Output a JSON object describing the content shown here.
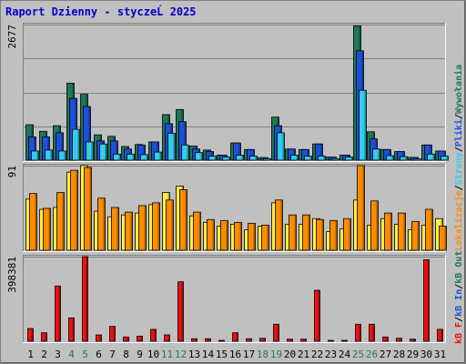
{
  "title": "Raport Dzienny -  styczeĹ  2025",
  "colors": {
    "background": "#c0c0c0",
    "title_text": "#0000cc",
    "frame_dark": "#808080",
    "frame_light": "#ffffff",
    "gridline": "#808080",
    "visits": "#1e7856",
    "pages": "#1e4fdc",
    "files": "#33ccee",
    "hits": "#1e7856",
    "kb_in": "#ffee44",
    "kb_out": "#ff8c00",
    "kb_f": "#ee1111",
    "weekend_day": "#1e7856",
    "weekday": "#000000"
  },
  "legend_right": [
    {
      "text": "kB F",
      "color": "#ee1111"
    },
    {
      "text": "/",
      "color": "#000000"
    },
    {
      "text": "kB In",
      "color": "#1e4fdc"
    },
    {
      "text": "/",
      "color": "#000000"
    },
    {
      "text": "kB Out",
      "color": "#1e7856"
    },
    {
      "text": "Lokalizacje",
      "color": "#ff8c00"
    },
    {
      "text": "/",
      "color": "#000000"
    },
    {
      "text": "Strony",
      "color": "#33ccee"
    },
    {
      "text": "/",
      "color": "#000000"
    },
    {
      "text": "Pliki",
      "color": "#1e4fdc"
    },
    {
      "text": "/",
      "color": "#000000"
    },
    {
      "text": "Wywołania",
      "color": "#1e7856"
    }
  ],
  "chart_data": {
    "type": "bar",
    "categories": [
      "1",
      "2",
      "3",
      "4",
      "5",
      "6",
      "7",
      "8",
      "9",
      "10",
      "11",
      "12",
      "13",
      "14",
      "15",
      "16",
      "17",
      "18",
      "19",
      "20",
      "21",
      "22",
      "23",
      "24",
      "25",
      "26",
      "27",
      "28",
      "29",
      "30",
      "31"
    ],
    "weekend_days": [
      "4",
      "5",
      "11",
      "12",
      "18",
      "19",
      "25",
      "26"
    ],
    "panels": [
      {
        "id": "requests",
        "ytick_label": "2677",
        "ylim": [
          0,
          2677
        ],
        "series": [
          {
            "name": "Wywołania",
            "color": "#1e7856",
            "values": [
              700,
              570,
              680,
              1520,
              1300,
              500,
              470,
              270,
              310,
              360,
              900,
              1000,
              280,
              200,
              100,
              340,
              210,
              50,
              850,
              220,
              210,
              320,
              60,
              100,
              2650,
              560,
              210,
              170,
              55,
              300,
              180
            ]
          },
          {
            "name": "Pliki",
            "color": "#1e4fdc",
            "values": [
              460,
              460,
              540,
              1220,
              1060,
              380,
              380,
              220,
              300,
              360,
              720,
              760,
              220,
              170,
              100,
              340,
              210,
              50,
              680,
              220,
              210,
              320,
              60,
              100,
              2160,
              420,
              210,
              170,
              55,
              300,
              180
            ]
          },
          {
            "name": "Strony",
            "color": "#33ccee",
            "values": [
              180,
              200,
              180,
              610,
              360,
              320,
              120,
              120,
              110,
              160,
              530,
              300,
              150,
              80,
              60,
              100,
              80,
              30,
              540,
              100,
              80,
              80,
              30,
              60,
              1380,
              220,
              90,
              70,
              25,
              120,
              80
            ]
          }
        ]
      },
      {
        "id": "sites",
        "ytick_label": "91",
        "ylim": [
          0,
          91
        ],
        "series": [
          {
            "name": "Lokalizacje (jasne)",
            "color": "#ffee44",
            "values": [
              55,
              44,
              46,
              84,
              91,
              42,
              36,
              38,
              40,
              49,
              62,
              69,
              37,
              30,
              26,
              28,
              22,
              26,
              51,
              28,
              28,
              34,
              20,
              23,
              54,
              27,
              34,
              28,
              22,
              27,
              34
            ]
          },
          {
            "name": "Lokalizacje",
            "color": "#ff8c00",
            "values": [
              61,
              45,
              62,
              86,
              89,
              56,
              46,
              41,
              48,
              51,
              54,
              65,
              41,
              33,
              32,
              30,
              29,
              27,
              54,
              38,
              38,
              33,
              32,
              34,
              91,
              53,
              40,
              40,
              31,
              44,
              26
            ]
          }
        ]
      },
      {
        "id": "traffic",
        "ytick_label": "398381",
        "ylim": [
          0,
          398381
        ],
        "series": [
          {
            "name": "kB F",
            "color": "#ee1111",
            "values": [
              60000,
              40000,
              260000,
              110000,
              398381,
              30000,
              70000,
              20000,
              24000,
              56000,
              30000,
              280000,
              12000,
              12000,
              4000,
              40000,
              12000,
              14000,
              80000,
              10000,
              10000,
              240000,
              4000,
              4000,
              80000,
              80000,
              20000,
              14000,
              10000,
              384000,
              56000
            ]
          }
        ]
      }
    ]
  }
}
